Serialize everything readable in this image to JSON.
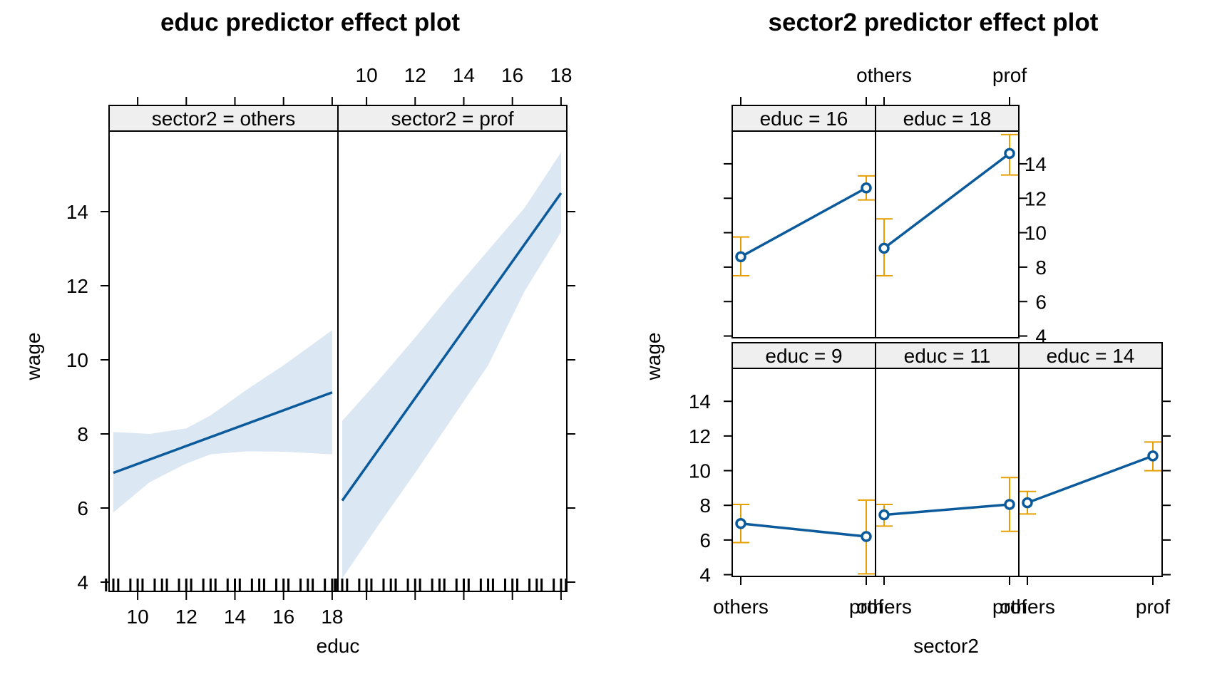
{
  "colors": {
    "line": "#0b5a9c",
    "band": "#dbe7f3",
    "error_bar": "#e69f00",
    "strip": "#efefef",
    "axis": "#000000"
  },
  "chart_data": [
    {
      "type": "line",
      "title": "educ predictor effect plot",
      "xlabel": "educ",
      "ylabel": "wage",
      "xlim": [
        8.75,
        18.25
      ],
      "ylim": [
        3.75,
        15.95
      ],
      "x_ticks": [
        "10",
        "12",
        "14",
        "16",
        "18"
      ],
      "y_ticks": [
        "4",
        "6",
        "8",
        "10",
        "12",
        "14"
      ],
      "panels": [
        {
          "strip": "sector2 = others",
          "fit": [
            [
              9,
              6.95
            ],
            [
              18,
              9.12
            ]
          ],
          "band_upper": [
            [
              9,
              8.05
            ],
            [
              10.5,
              8.0
            ],
            [
              12,
              8.15
            ],
            [
              13,
              8.5
            ],
            [
              14.5,
              9.2
            ],
            [
              16,
              9.85
            ],
            [
              18,
              10.8
            ]
          ],
          "band_lower": [
            [
              9,
              5.88
            ],
            [
              10.5,
              6.7
            ],
            [
              12,
              7.2
            ],
            [
              13,
              7.45
            ],
            [
              14.5,
              7.53
            ],
            [
              16,
              7.52
            ],
            [
              18,
              7.45
            ]
          ]
        },
        {
          "strip": "sector2 = prof",
          "fit": [
            [
              9,
              6.2
            ],
            [
              18,
              14.5
            ]
          ],
          "band_upper": [
            [
              9,
              8.35
            ],
            [
              10.5,
              9.45
            ],
            [
              12,
              10.6
            ],
            [
              13.5,
              11.8
            ],
            [
              15,
              12.95
            ],
            [
              16.5,
              14.1
            ],
            [
              18,
              15.6
            ]
          ],
          "band_lower": [
            [
              9,
              4.1
            ],
            [
              10.5,
              5.55
            ],
            [
              12,
              6.95
            ],
            [
              13.5,
              8.4
            ],
            [
              15,
              9.85
            ],
            [
              16.5,
              11.85
            ],
            [
              18,
              13.45
            ]
          ]
        }
      ],
      "rug": [
        9,
        10,
        11,
        12,
        13,
        14,
        15,
        16,
        17,
        18
      ]
    },
    {
      "type": "line",
      "title": "sector2 predictor effect plot",
      "xlabel": "sector2",
      "ylabel": "wage",
      "categories": [
        "others",
        "prof"
      ],
      "ylim": [
        3.9,
        15.9
      ],
      "y_ticks": [
        "4",
        "6",
        "8",
        "10",
        "12",
        "14"
      ],
      "panels": [
        {
          "strip": "educ = 9",
          "values": [
            6.95,
            6.2
          ],
          "lower": [
            5.85,
            4.05
          ],
          "upper": [
            8.05,
            8.3
          ]
        },
        {
          "strip": "educ = 11",
          "values": [
            7.45,
            8.05
          ],
          "lower": [
            6.8,
            6.5
          ],
          "upper": [
            8.05,
            9.6
          ]
        },
        {
          "strip": "educ = 14",
          "values": [
            8.15,
            10.85
          ],
          "lower": [
            7.5,
            10.0
          ],
          "upper": [
            8.8,
            11.65
          ]
        },
        {
          "strip": "educ = 16",
          "values": [
            8.6,
            12.6
          ],
          "lower": [
            7.5,
            11.9
          ],
          "upper": [
            9.75,
            13.3
          ]
        },
        {
          "strip": "educ = 18",
          "values": [
            9.1,
            14.6
          ],
          "lower": [
            7.5,
            13.35
          ],
          "upper": [
            10.8,
            15.7
          ]
        }
      ]
    }
  ]
}
